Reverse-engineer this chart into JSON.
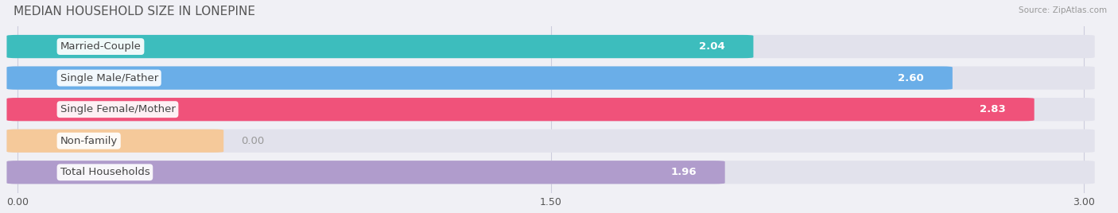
{
  "title": "MEDIAN HOUSEHOLD SIZE IN LONEPINE",
  "source": "Source: ZipAtlas.com",
  "categories": [
    "Married-Couple",
    "Single Male/Father",
    "Single Female/Mother",
    "Non-family",
    "Total Households"
  ],
  "values": [
    2.04,
    2.6,
    2.83,
    0.0,
    1.96
  ],
  "bar_colors": [
    "#3dbdbd",
    "#6aaee8",
    "#f0527a",
    "#f5c99a",
    "#b09ccc"
  ],
  "background_color": "#f0f0f5",
  "bar_bg_color": "#e2e2ec",
  "xlim_max": 3.0,
  "xticks": [
    0.0,
    1.5,
    3.0
  ],
  "title_fontsize": 11,
  "label_fontsize": 9.5,
  "value_fontsize": 9.5,
  "non_family_bar_width": 0.55
}
